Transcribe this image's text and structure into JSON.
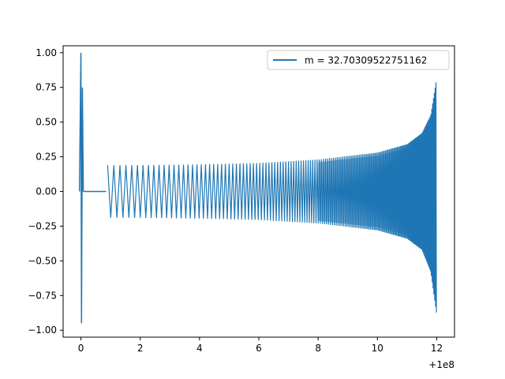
{
  "chart_data": {
    "type": "line",
    "title": "",
    "xlabel": "",
    "ylabel": "",
    "x_offset_label": "+1e8",
    "xlim": [
      -0.6,
      12.6
    ],
    "ylim": [
      -1.05,
      1.05
    ],
    "xticks": [
      0,
      2,
      4,
      6,
      8,
      10,
      12
    ],
    "xtick_labels": [
      "0",
      "2",
      "4",
      "6",
      "8",
      "10",
      "12"
    ],
    "yticks": [
      1.0,
      0.75,
      0.5,
      0.25,
      0.0,
      -0.25,
      -0.5,
      -0.75,
      -1.0
    ],
    "ytick_labels": [
      "1.00",
      "0.75",
      "0.50",
      "0.25",
      "0.00",
      "−0.25",
      "−0.50",
      "−0.75",
      "−1.00"
    ],
    "grid": false,
    "legend_position": "top-right",
    "series": [
      {
        "name": "m = 32.70309522751162",
        "color": "#1f77b4",
        "segments": [
          {
            "description_label": "initial spike",
            "x": [
              -0.05,
              0.0,
              0.02,
              0.05,
              0.08
            ],
            "y": [
              0.0,
              1.0,
              -0.95,
              0.75,
              0.0
            ]
          },
          {
            "description_label": "flat",
            "x": [
              0.08,
              0.85
            ],
            "y": [
              0.0,
              0.0
            ]
          },
          {
            "description_label": "oscillation envelope",
            "x": [
              0.9,
              2.0,
              4.0,
              6.0,
              8.0,
              10.0,
              11.0,
              11.5,
              11.8,
              12.0
            ],
            "y_upper": [
              0.19,
              0.19,
              0.195,
              0.205,
              0.23,
              0.28,
              0.34,
              0.42,
              0.55,
              0.82
            ],
            "y_lower": [
              -0.19,
              -0.19,
              -0.195,
              -0.205,
              -0.23,
              -0.28,
              -0.34,
              -0.42,
              -0.58,
              -0.89
            ]
          }
        ]
      }
    ]
  }
}
